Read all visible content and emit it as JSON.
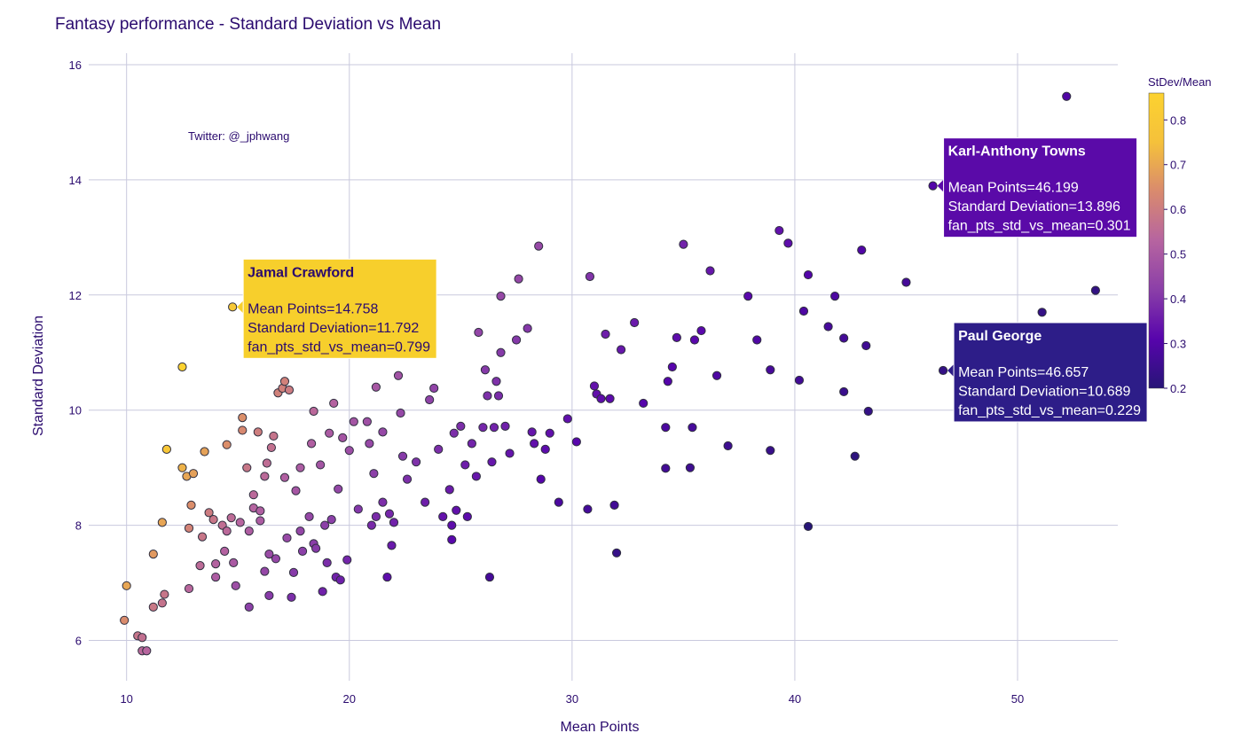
{
  "chart_data": {
    "type": "scatter",
    "title": "Fantasy performance - Standard Deviation vs Mean",
    "xlabel": "Mean Points",
    "ylabel": "Standard Deviation",
    "xlim": [
      8.3,
      54.5
    ],
    "ylim": [
      5.3,
      16.2
    ],
    "xticks": [
      10,
      20,
      30,
      40,
      50
    ],
    "yticks": [
      6,
      8,
      10,
      12,
      14,
      16
    ],
    "grid": true,
    "annotation": "Twitter: @_jphwang",
    "colorbar": {
      "title": "StDev/Mean",
      "range": [
        0.2,
        0.86
      ],
      "ticks": [
        0.2,
        0.3,
        0.4,
        0.5,
        0.6,
        0.7,
        0.8
      ],
      "colors": [
        "#271577",
        "#5704ac",
        "#8b3fa8",
        "#b664a0",
        "#d98a6e",
        "#f5c13b",
        "#fcd230"
      ]
    },
    "color_field": "fan_pts_std_vs_mean",
    "points": [
      [
        9.9,
        6.35
      ],
      [
        10.0,
        6.95
      ],
      [
        10.5,
        6.08
      ],
      [
        10.7,
        6.05
      ],
      [
        10.7,
        5.82
      ],
      [
        10.9,
        5.82
      ],
      [
        11.2,
        7.5
      ],
      [
        11.2,
        6.58
      ],
      [
        11.6,
        6.65
      ],
      [
        11.7,
        6.8
      ],
      [
        11.6,
        8.05
      ],
      [
        11.8,
        9.32
      ],
      [
        12.5,
        10.75
      ],
      [
        12.5,
        9.0
      ],
      [
        12.7,
        8.85
      ],
      [
        12.8,
        7.95
      ],
      [
        12.8,
        6.9
      ],
      [
        12.9,
        8.35
      ],
      [
        13.0,
        8.9
      ],
      [
        13.3,
        7.3
      ],
      [
        13.4,
        7.8
      ],
      [
        13.5,
        9.28
      ],
      [
        13.7,
        8.22
      ],
      [
        13.9,
        8.1
      ],
      [
        14.0,
        7.1
      ],
      [
        14.0,
        7.33
      ],
      [
        14.3,
        8.0
      ],
      [
        14.4,
        7.55
      ],
      [
        14.5,
        9.4
      ],
      [
        14.5,
        7.9
      ],
      [
        14.7,
        8.13
      ],
      [
        14.8,
        7.35
      ],
      [
        14.9,
        6.95
      ],
      [
        14.758,
        11.792
      ],
      [
        15.1,
        8.05
      ],
      [
        15.2,
        9.87
      ],
      [
        15.2,
        9.65
      ],
      [
        15.4,
        9.0
      ],
      [
        15.5,
        7.9
      ],
      [
        15.5,
        6.58
      ],
      [
        15.7,
        8.3
      ],
      [
        15.7,
        8.53
      ],
      [
        15.9,
        9.62
      ],
      [
        16.0,
        8.25
      ],
      [
        16.0,
        8.08
      ],
      [
        16.2,
        7.2
      ],
      [
        16.2,
        8.85
      ],
      [
        16.3,
        9.08
      ],
      [
        16.4,
        7.5
      ],
      [
        16.4,
        6.78
      ],
      [
        16.5,
        9.35
      ],
      [
        16.6,
        9.55
      ],
      [
        16.7,
        7.42
      ],
      [
        16.8,
        10.3
      ],
      [
        17.0,
        10.38
      ],
      [
        17.1,
        10.5
      ],
      [
        17.1,
        8.83
      ],
      [
        17.2,
        7.78
      ],
      [
        17.3,
        10.35
      ],
      [
        17.4,
        6.75
      ],
      [
        17.5,
        7.18
      ],
      [
        17.6,
        8.6
      ],
      [
        17.8,
        9.0
      ],
      [
        17.8,
        7.9
      ],
      [
        17.9,
        7.55
      ],
      [
        18.2,
        8.15
      ],
      [
        18.3,
        9.42
      ],
      [
        18.4,
        9.98
      ],
      [
        18.4,
        7.68
      ],
      [
        18.5,
        7.6
      ],
      [
        18.7,
        9.05
      ],
      [
        18.8,
        6.85
      ],
      [
        18.9,
        8.0
      ],
      [
        19.0,
        7.35
      ],
      [
        19.1,
        9.6
      ],
      [
        19.2,
        8.1
      ],
      [
        19.3,
        10.12
      ],
      [
        19.4,
        7.1
      ],
      [
        19.5,
        8.63
      ],
      [
        19.6,
        7.05
      ],
      [
        19.7,
        9.52
      ],
      [
        19.9,
        7.4
      ],
      [
        20.0,
        9.3
      ],
      [
        20.2,
        9.8
      ],
      [
        20.4,
        8.28
      ],
      [
        20.8,
        9.8
      ],
      [
        20.9,
        9.42
      ],
      [
        21.0,
        8.0
      ],
      [
        21.1,
        8.9
      ],
      [
        21.2,
        8.15
      ],
      [
        21.2,
        10.4
      ],
      [
        21.5,
        9.62
      ],
      [
        21.5,
        8.4
      ],
      [
        21.7,
        7.1
      ],
      [
        21.8,
        8.2
      ],
      [
        21.9,
        7.65
      ],
      [
        22.0,
        8.05
      ],
      [
        22.2,
        10.6
      ],
      [
        22.3,
        9.95
      ],
      [
        22.4,
        9.2
      ],
      [
        22.6,
        8.8
      ],
      [
        23.0,
        9.1
      ],
      [
        23.2,
        11.12
      ],
      [
        23.4,
        8.4
      ],
      [
        23.6,
        10.18
      ],
      [
        23.8,
        10.38
      ],
      [
        24.0,
        9.32
      ],
      [
        24.2,
        8.15
      ],
      [
        24.5,
        8.62
      ],
      [
        24.6,
        7.75
      ],
      [
        24.6,
        8.0
      ],
      [
        24.7,
        9.6
      ],
      [
        24.8,
        8.26
      ],
      [
        25.0,
        9.72
      ],
      [
        25.2,
        9.05
      ],
      [
        25.3,
        8.15
      ],
      [
        25.5,
        9.42
      ],
      [
        25.7,
        8.85
      ],
      [
        25.8,
        11.35
      ],
      [
        26.0,
        9.7
      ],
      [
        26.1,
        10.7
      ],
      [
        26.2,
        10.25
      ],
      [
        26.3,
        7.1
      ],
      [
        26.4,
        9.1
      ],
      [
        26.5,
        9.7
      ],
      [
        26.6,
        10.5
      ],
      [
        26.7,
        10.25
      ],
      [
        26.8,
        11.98
      ],
      [
        26.8,
        11.0
      ],
      [
        27.0,
        9.72
      ],
      [
        27.2,
        9.25
      ],
      [
        27.5,
        11.22
      ],
      [
        27.6,
        12.28
      ],
      [
        28.0,
        11.42
      ],
      [
        28.2,
        9.62
      ],
      [
        28.3,
        9.42
      ],
      [
        28.5,
        12.85
      ],
      [
        28.6,
        8.8
      ],
      [
        28.8,
        9.32
      ],
      [
        29.0,
        9.6
      ],
      [
        29.4,
        8.4
      ],
      [
        29.8,
        9.85
      ],
      [
        30.2,
        9.45
      ],
      [
        30.7,
        8.28
      ],
      [
        30.8,
        12.32
      ],
      [
        31.0,
        10.42
      ],
      [
        31.1,
        10.28
      ],
      [
        31.3,
        10.2
      ],
      [
        31.5,
        11.32
      ],
      [
        31.7,
        10.2
      ],
      [
        31.9,
        8.35
      ],
      [
        32.0,
        7.52
      ],
      [
        32.2,
        11.05
      ],
      [
        32.8,
        11.52
      ],
      [
        33.2,
        10.12
      ],
      [
        34.2,
        8.99
      ],
      [
        34.2,
        9.7
      ],
      [
        34.3,
        10.5
      ],
      [
        34.5,
        10.75
      ],
      [
        34.7,
        11.26
      ],
      [
        35.0,
        12.88
      ],
      [
        35.3,
        9.0
      ],
      [
        35.4,
        9.7
      ],
      [
        35.5,
        11.22
      ],
      [
        35.8,
        11.38
      ],
      [
        36.2,
        12.42
      ],
      [
        36.5,
        10.6
      ],
      [
        37.0,
        9.38
      ],
      [
        37.9,
        11.98
      ],
      [
        38.3,
        11.22
      ],
      [
        38.9,
        10.7
      ],
      [
        38.9,
        9.3
      ],
      [
        39.3,
        13.12
      ],
      [
        39.7,
        12.9
      ],
      [
        40.2,
        10.52
      ],
      [
        40.4,
        11.72
      ],
      [
        40.6,
        7.98
      ],
      [
        40.6,
        12.35
      ],
      [
        41.5,
        11.45
      ],
      [
        41.8,
        11.98
      ],
      [
        42.2,
        11.25
      ],
      [
        42.2,
        10.32
      ],
      [
        42.7,
        9.2
      ],
      [
        43.0,
        12.78
      ],
      [
        43.2,
        11.12
      ],
      [
        43.3,
        9.98
      ],
      [
        45.0,
        12.22
      ],
      [
        46.199,
        13.896
      ],
      [
        46.657,
        10.689
      ],
      [
        51.1,
        11.7
      ],
      [
        52.2,
        15.45
      ],
      [
        53.5,
        12.08
      ]
    ],
    "hover_labels": [
      {
        "name": "Jamal Crawford",
        "lines": [
          "Mean Points=14.758",
          "Standard Deviation=11.792",
          "fan_pts_std_vs_mean=0.799"
        ],
        "color": "#f7cf2c",
        "x": 14.758,
        "y": 11.792,
        "ratio": 0.799
      },
      {
        "name": "Karl-Anthony Towns",
        "lines": [
          "Mean Points=46.199",
          "Standard Deviation=13.896",
          "fan_pts_std_vs_mean=0.301"
        ],
        "color": "#5a0aa8",
        "x": 46.199,
        "y": 13.896,
        "ratio": 0.301
      },
      {
        "name": "Paul George",
        "lines": [
          "Mean Points=46.657",
          "Standard Deviation=10.689",
          "fan_pts_std_vs_mean=0.229"
        ],
        "color": "#2d1d88",
        "x": 46.657,
        "y": 10.689,
        "ratio": 0.229
      }
    ]
  }
}
